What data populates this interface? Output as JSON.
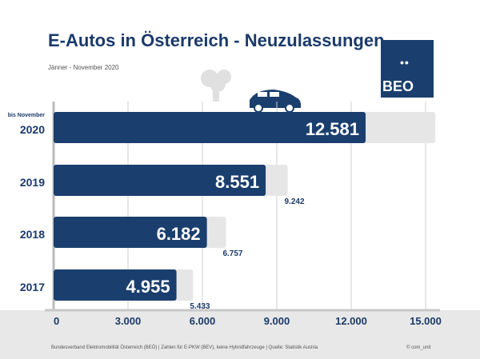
{
  "title": "E-Autos in Österreich - Neuzulassungen",
  "subtitle": "Jänner - November 2020",
  "logo": {
    "text": "BEO",
    "dots": "••"
  },
  "footer": "Bundesverband Elektromobilität Österreich (BEÖ) | Zahlen für E-PKW (BEV), keine Hybridfahrzeuge | Quelle: Statistik Austria",
  "copyright": "© com_unit",
  "colors": {
    "bar": "#1a3f6e",
    "total": "#e6e6e6",
    "text": "#1a3a6b"
  },
  "chart_data": {
    "type": "bar",
    "orientation": "horizontal",
    "categories": [
      "2020",
      "2019",
      "2018",
      "2017"
    ],
    "category_notes": [
      "bis November",
      "",
      "",
      ""
    ],
    "series": [
      {
        "values": [
          12581,
          8551,
          6182,
          4955
        ],
        "labels": [
          "12.581",
          "8.551",
          "6.182",
          "4.955"
        ]
      },
      {
        "values": [
          15200,
          9242,
          6757,
          5433
        ],
        "labels": [
          "",
          "9.242",
          "6.757",
          "5.433"
        ]
      }
    ],
    "xlim": [
      0,
      15000
    ],
    "xticks": [
      0,
      3000,
      6000,
      9000,
      12000,
      15000
    ],
    "xtick_labels": [
      "0",
      "3.000",
      "6.000",
      "9.000",
      "12.000",
      "15.000"
    ],
    "grid": true
  }
}
